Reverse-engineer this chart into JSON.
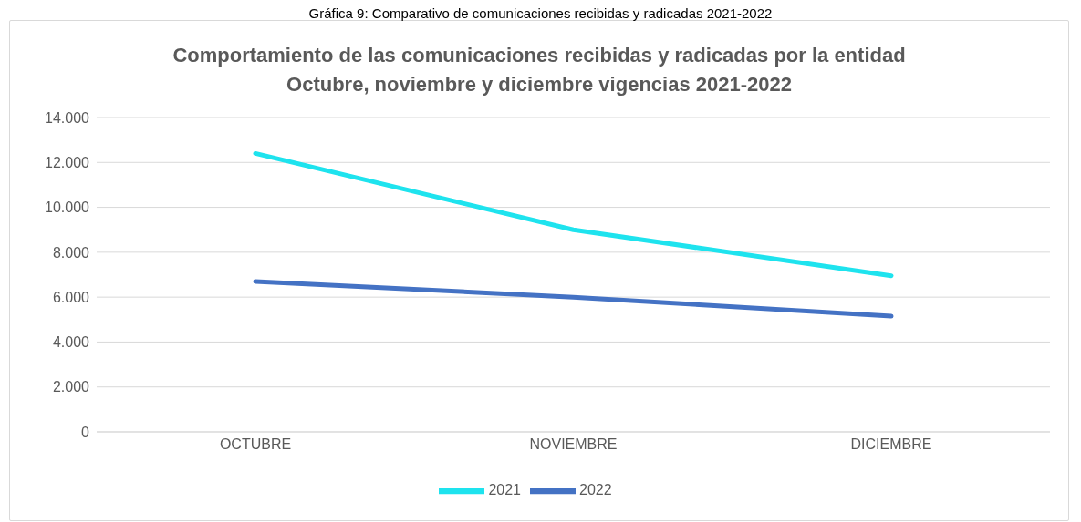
{
  "chart_data": {
    "type": "line",
    "title": "Comportamiento de las comunicaciones recibidas y radicadas por la entidad\nOctubre, noviembre y diciembre vigencias 2021-2022",
    "annotations": [
      "Gráfica 9: Comparativo de comunicaciones recibidas y radicadas 2021-2022"
    ],
    "categories": [
      "OCTUBRE",
      "NOVIEMBRE",
      "DICIEMBRE"
    ],
    "series": [
      {
        "name": "2021",
        "color": "#1ee3ee",
        "values": [
          12400,
          9000,
          6950
        ]
      },
      {
        "name": "2022",
        "color": "#4472c4",
        "values": [
          6700,
          6000,
          5150
        ]
      }
    ],
    "ylim": [
      0,
      14000
    ],
    "yticks": [
      {
        "value": 0,
        "label": "0"
      },
      {
        "value": 2000,
        "label": "2.000"
      },
      {
        "value": 4000,
        "label": "4.000"
      },
      {
        "value": 6000,
        "label": "6.000"
      },
      {
        "value": 8000,
        "label": "8.000"
      },
      {
        "value": 10000,
        "label": "10.000"
      },
      {
        "value": 12000,
        "label": "12.000"
      },
      {
        "value": 14000,
        "label": "14.000"
      }
    ],
    "grid": "y",
    "legend": "bottom",
    "marker": "none",
    "line_style": "solid"
  }
}
